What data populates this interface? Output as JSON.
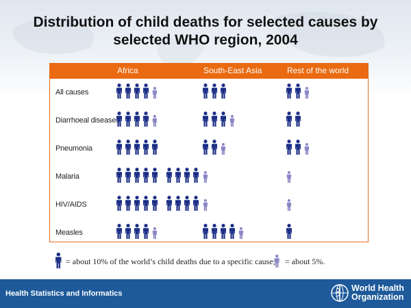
{
  "title_line1": "Distribution of child deaths for selected causes by",
  "title_line2": "selected WHO region, 2004",
  "footer": {
    "left_text": "Health Statistics and Informatics",
    "org_line1": "World Health",
    "org_line2": "Organization"
  },
  "legend": {
    "full_text": "= about 10% of the world’s child deaths due to a specific cause;",
    "half_text": "= about 5%."
  },
  "colors": {
    "header": "#e96a10",
    "figure_full": "#1c2f86",
    "figure_half": "#8a86c4",
    "footer": "#1e5a9a"
  },
  "chart_data": {
    "type": "table",
    "title": "Distribution of child deaths for selected causes by selected WHO region, 2004",
    "unit_full": 10,
    "unit_half": 5,
    "columns": [
      "Africa",
      "South-East Asia",
      "Rest of the world"
    ],
    "rows": [
      {
        "label": "All causes",
        "values": [
          45,
          30,
          25
        ]
      },
      {
        "label": "Diarrhoeal diseases",
        "values": [
          45,
          35,
          20
        ]
      },
      {
        "label": "Pneumonia",
        "values": [
          50,
          25,
          25
        ]
      },
      {
        "label": "Malaria",
        "values": [
          90,
          5,
          5
        ]
      },
      {
        "label": "HIV/AIDS",
        "values": [
          90,
          5,
          5
        ]
      },
      {
        "label": "Measles",
        "values": [
          45,
          45,
          10
        ]
      }
    ]
  }
}
